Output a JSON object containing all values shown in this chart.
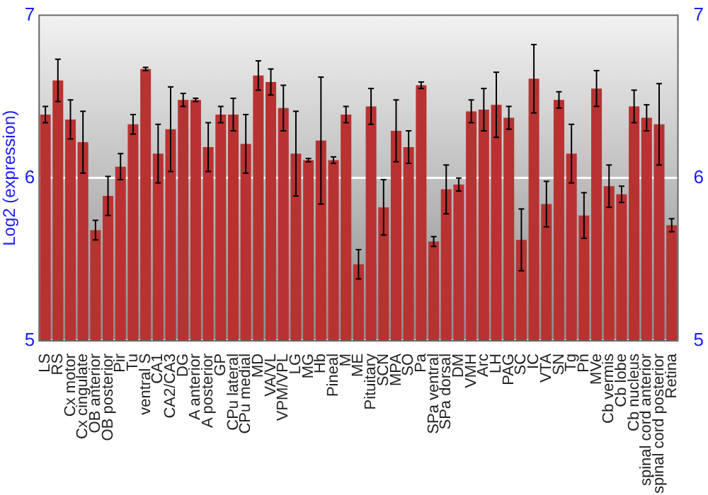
{
  "chart_data": {
    "type": "bar",
    "ylabel": "Log2 (expression)",
    "categories": [
      "LS",
      "RS",
      "Cx motor",
      "Cx cingulate",
      "OB anterior",
      "OB posterior",
      "Pir",
      "Tu",
      "ventral S",
      "CA1",
      "CA2/CA3",
      "DG",
      "A anterior",
      "A posterior",
      "GP",
      "CPu lateral",
      "CPu medial",
      "MD",
      "VA/VL",
      "VPM/VPL",
      "LG",
      "MG",
      "Hb",
      "Pineal",
      "M",
      "ME",
      "Pituitary",
      "SCN",
      "MPA",
      "SO",
      "Pa",
      "SPa ventral",
      "SPa dorsal",
      "DM",
      "VMH",
      "Arc",
      "LH",
      "PAG",
      "SC",
      "IC",
      "VTA",
      "SN",
      "Tg",
      "Pn",
      "MVe",
      "Cb vermis",
      "Cb lobe",
      "Cb nucleus",
      "spinal cord anterior",
      "spinal cord posterior",
      "Retina"
    ],
    "values": [
      6.39,
      6.6,
      6.36,
      6.22,
      5.68,
      5.89,
      6.07,
      6.33,
      6.67,
      6.15,
      6.3,
      6.48,
      6.48,
      6.19,
      6.39,
      6.39,
      6.21,
      6.63,
      6.59,
      6.43,
      6.15,
      6.11,
      6.23,
      6.11,
      6.39,
      5.47,
      6.44,
      5.82,
      6.29,
      6.19,
      6.57,
      5.61,
      5.93,
      5.96,
      6.41,
      6.42,
      6.45,
      6.37,
      5.62,
      6.61,
      5.84,
      6.48,
      6.15,
      5.77,
      6.55,
      5.95,
      5.9,
      6.44,
      6.37,
      6.33,
      5.71
    ],
    "errors": [
      0.05,
      0.13,
      0.12,
      0.19,
      0.06,
      0.12,
      0.08,
      0.06,
      0.01,
      0.18,
      0.26,
      0.04,
      0.01,
      0.15,
      0.05,
      0.1,
      0.18,
      0.09,
      0.08,
      0.14,
      0.26,
      0.01,
      0.39,
      0.02,
      0.05,
      0.09,
      0.11,
      0.17,
      0.19,
      0.1,
      0.02,
      0.03,
      0.15,
      0.04,
      0.07,
      0.13,
      0.2,
      0.07,
      0.19,
      0.21,
      0.14,
      0.05,
      0.18,
      0.14,
      0.11,
      0.13,
      0.05,
      0.1,
      0.08,
      0.25,
      0.04
    ],
    "color": "#b83232",
    "ylim": [
      5,
      7
    ],
    "yticks": [
      5,
      6,
      7
    ],
    "y2lim": [
      5,
      7
    ],
    "y2ticks": [
      5,
      6,
      7
    ],
    "grid": "y"
  }
}
